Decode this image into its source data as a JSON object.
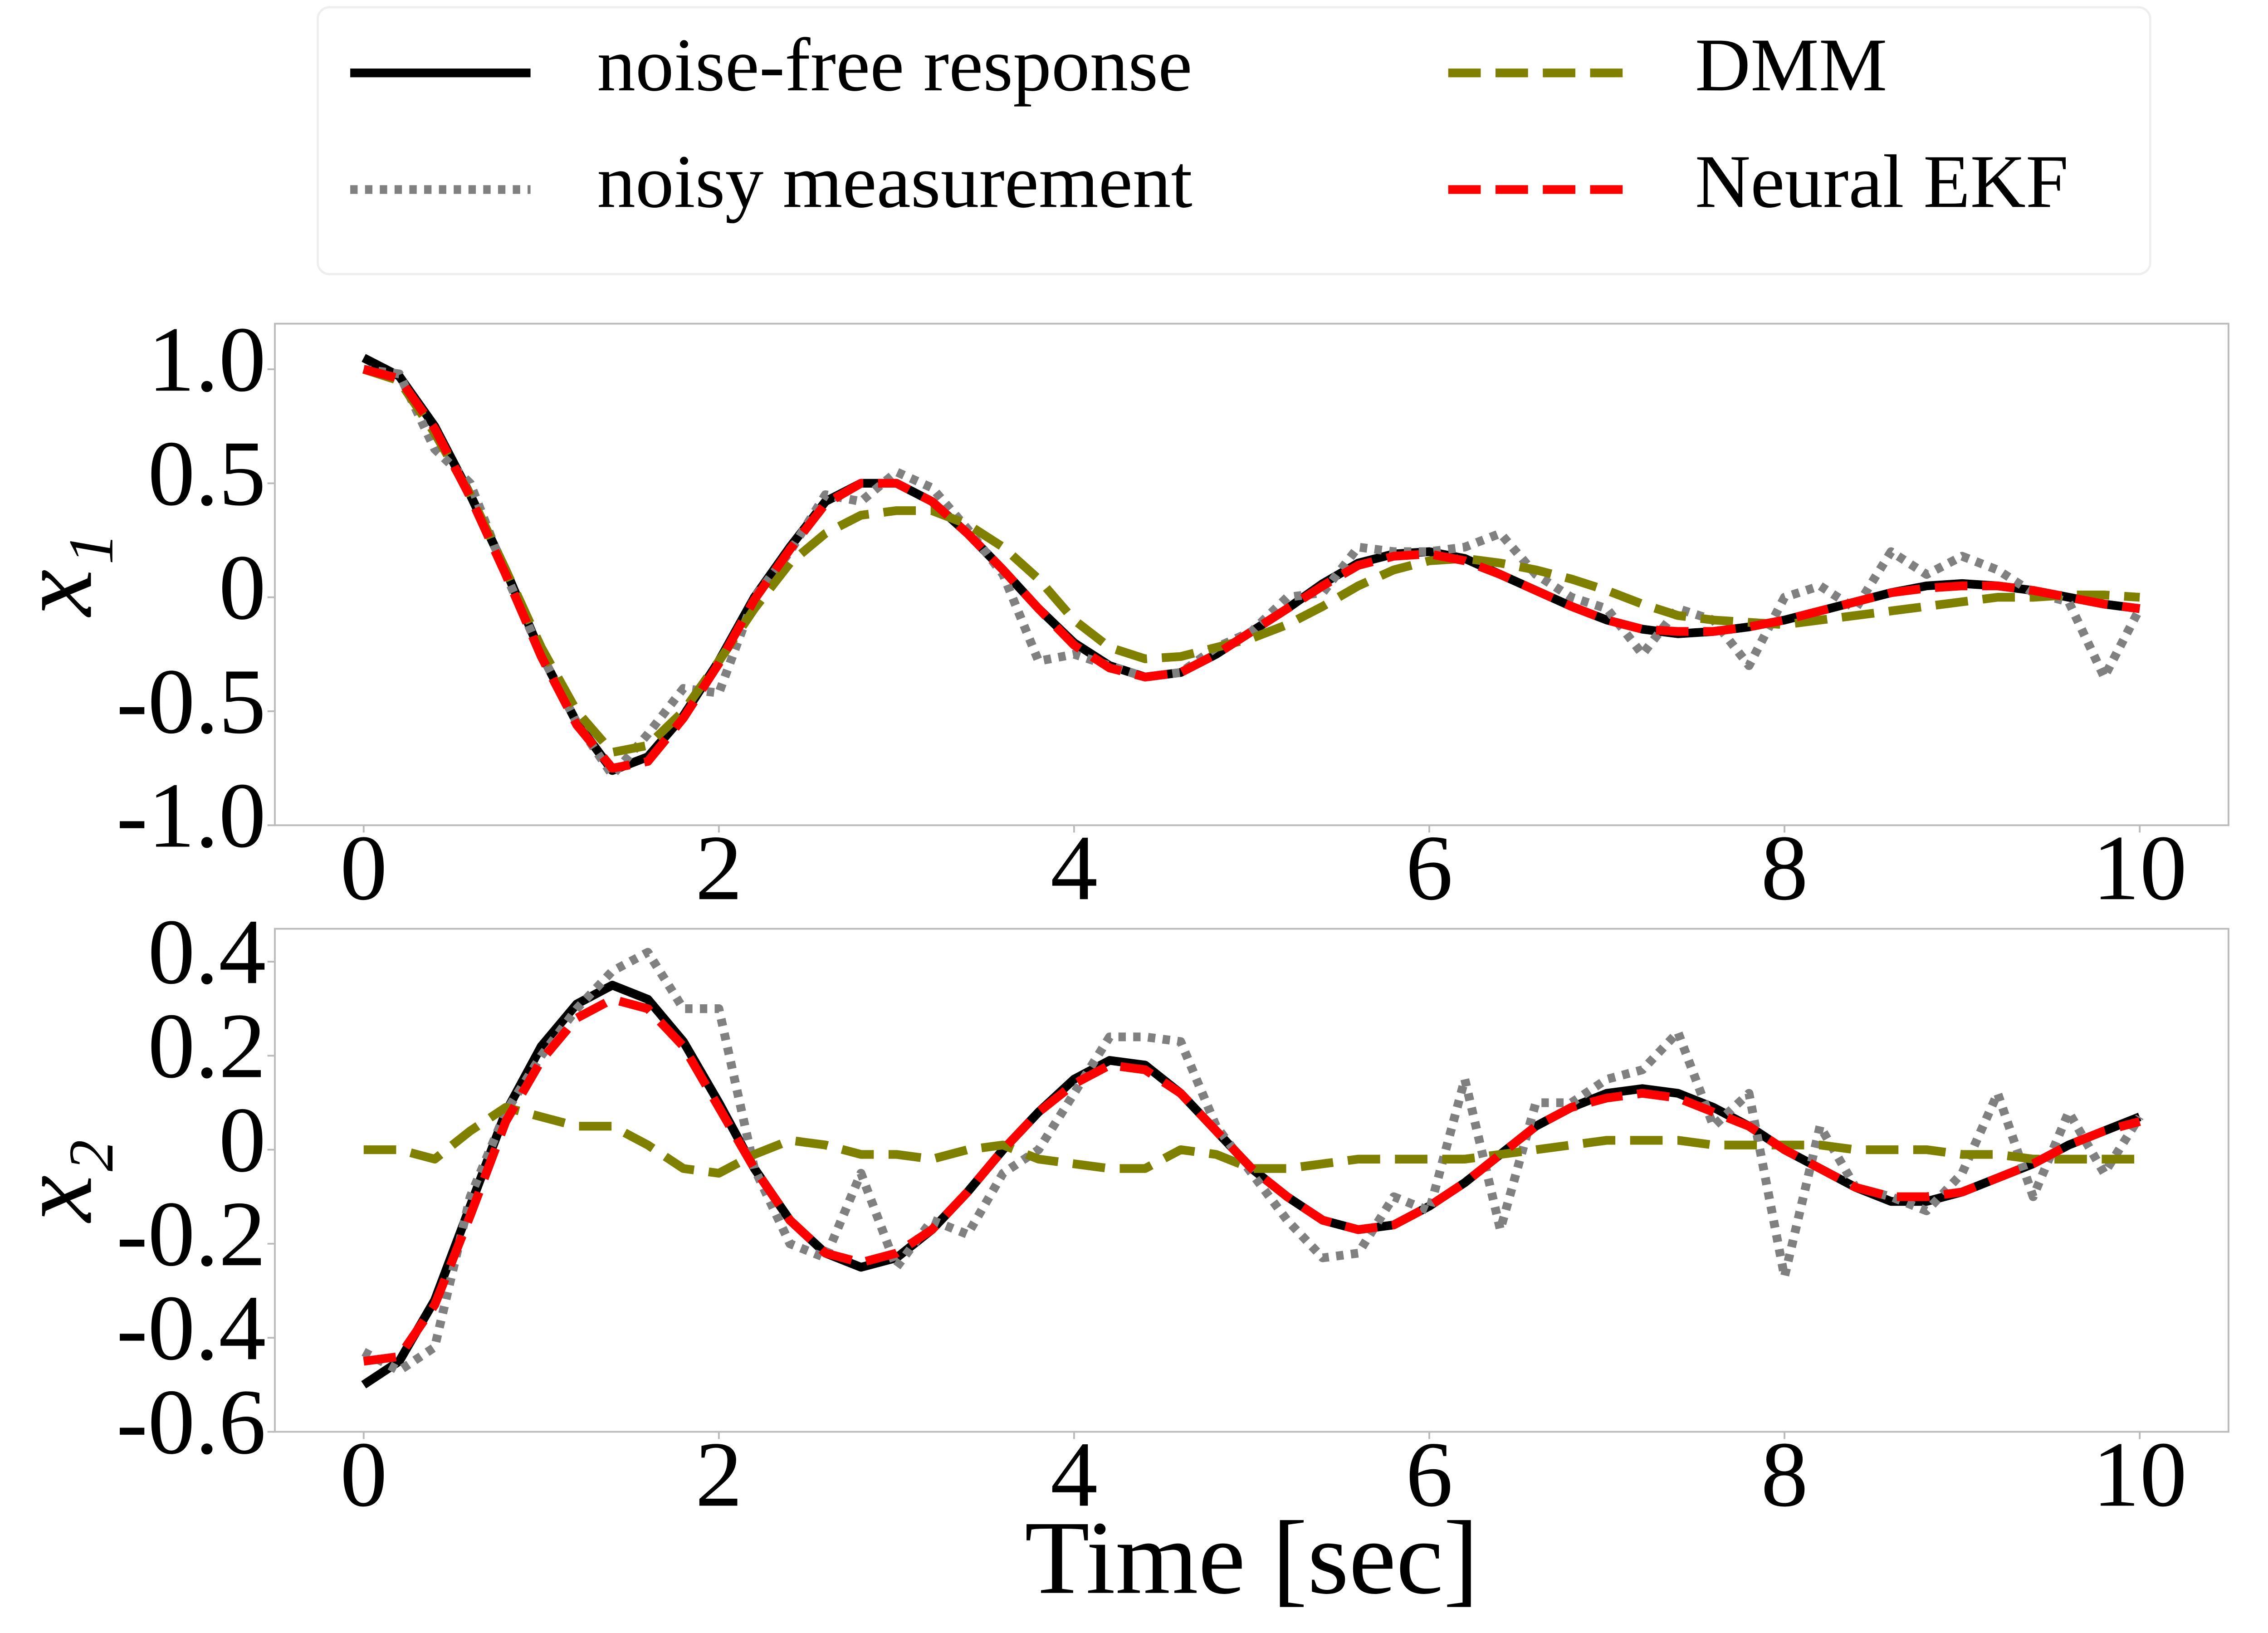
{
  "chart_data": [
    {
      "type": "line",
      "ylabel": "x₁",
      "x": [
        0,
        0.2,
        0.4,
        0.6,
        0.8,
        1,
        1.2,
        1.4,
        1.6,
        1.8,
        2,
        2.2,
        2.4,
        2.6,
        2.8,
        3,
        3.2,
        3.4,
        3.6,
        3.8,
        4,
        4.2,
        4.4,
        4.6,
        4.8,
        5,
        5.2,
        5.4,
        5.6,
        5.8,
        6,
        6.2,
        6.4,
        6.6,
        6.8,
        7,
        7.2,
        7.4,
        7.6,
        7.8,
        8,
        8.2,
        8.4,
        8.6,
        8.8,
        9,
        9.2,
        9.4,
        9.6,
        9.8,
        10
      ],
      "xlim": [
        -0.5,
        10.5
      ],
      "xticks": [
        0,
        2,
        4,
        6,
        8,
        10
      ],
      "ylim": [
        -1.0,
        1.2
      ],
      "yticks": [
        {
          "value": 1,
          "label": "1.0"
        },
        0.5,
        0,
        -0.5,
        {
          "value": -1,
          "label": "-1.0"
        }
      ],
      "legend": "upper center",
      "series": [
        {
          "name": "noise-free response",
          "color": "#000000",
          "linestyle": "solid",
          "values": [
            1.05,
            0.97,
            0.75,
            0.45,
            0.12,
            -0.25,
            -0.55,
            -0.76,
            -0.7,
            -0.52,
            -0.28,
            0.0,
            0.22,
            0.42,
            0.5,
            0.5,
            0.42,
            0.28,
            0.12,
            -0.05,
            -0.2,
            -0.3,
            -0.35,
            -0.33,
            -0.25,
            -0.15,
            -0.05,
            0.06,
            0.15,
            0.19,
            0.2,
            0.17,
            0.1,
            0.03,
            -0.04,
            -0.1,
            -0.14,
            -0.16,
            -0.15,
            -0.13,
            -0.1,
            -0.06,
            -0.02,
            0.02,
            0.05,
            0.06,
            0.05,
            0.03,
            0.0,
            -0.03,
            -0.05
          ]
        },
        {
          "name": "noisy measurement",
          "color": "#808080",
          "linestyle": "dotted",
          "values": [
            1.0,
            0.98,
            0.65,
            0.5,
            0.1,
            -0.25,
            -0.55,
            -0.78,
            -0.6,
            -0.4,
            -0.42,
            0.0,
            0.2,
            0.45,
            0.42,
            0.55,
            0.48,
            0.3,
            0.1,
            -0.28,
            -0.25,
            -0.3,
            -0.35,
            -0.33,
            -0.22,
            -0.15,
            0.0,
            0.02,
            0.22,
            0.2,
            0.2,
            0.22,
            0.28,
            0.1,
            0.0,
            -0.05,
            -0.25,
            -0.05,
            -0.1,
            -0.3,
            0.0,
            0.05,
            -0.05,
            0.2,
            0.1,
            0.18,
            0.12,
            0.02,
            -0.02,
            -0.35,
            -0.05
          ]
        },
        {
          "name": "DMM",
          "color": "#808000",
          "linestyle": "dashed",
          "values": [
            1.0,
            0.95,
            0.72,
            0.45,
            0.12,
            -0.22,
            -0.5,
            -0.68,
            -0.65,
            -0.5,
            -0.28,
            -0.05,
            0.15,
            0.28,
            0.36,
            0.38,
            0.38,
            0.32,
            0.22,
            0.08,
            -0.1,
            -0.22,
            -0.27,
            -0.26,
            -0.22,
            -0.18,
            -0.12,
            -0.04,
            0.05,
            0.12,
            0.16,
            0.17,
            0.15,
            0.12,
            0.08,
            0.03,
            -0.03,
            -0.08,
            -0.1,
            -0.11,
            -0.12,
            -0.1,
            -0.08,
            -0.06,
            -0.04,
            -0.02,
            0.0,
            0.0,
            0.01,
            0.01,
            0.0
          ]
        },
        {
          "name": "Neural EKF",
          "color": "#ff0000",
          "linestyle": "dashed",
          "values": [
            1.0,
            0.96,
            0.74,
            0.44,
            0.1,
            -0.26,
            -0.56,
            -0.75,
            -0.72,
            -0.53,
            -0.29,
            -0.01,
            0.21,
            0.41,
            0.5,
            0.5,
            0.42,
            0.28,
            0.12,
            -0.05,
            -0.21,
            -0.31,
            -0.35,
            -0.33,
            -0.25,
            -0.15,
            -0.05,
            0.05,
            0.14,
            0.18,
            0.19,
            0.16,
            0.1,
            0.03,
            -0.04,
            -0.1,
            -0.14,
            -0.15,
            -0.15,
            -0.13,
            -0.1,
            -0.06,
            -0.02,
            0.02,
            0.04,
            0.05,
            0.05,
            0.03,
            0.0,
            -0.03,
            -0.05
          ]
        }
      ]
    },
    {
      "type": "line",
      "ylabel": "x₂",
      "xlabel": "Time [sec]",
      "x": [
        0,
        0.2,
        0.4,
        0.6,
        0.8,
        1,
        1.2,
        1.4,
        1.6,
        1.8,
        2,
        2.2,
        2.4,
        2.6,
        2.8,
        3,
        3.2,
        3.4,
        3.6,
        3.8,
        4,
        4.2,
        4.4,
        4.6,
        4.8,
        5,
        5.2,
        5.4,
        5.6,
        5.8,
        6,
        6.2,
        6.4,
        6.6,
        6.8,
        7,
        7.2,
        7.4,
        7.6,
        7.8,
        8,
        8.2,
        8.4,
        8.6,
        8.8,
        9,
        9.2,
        9.4,
        9.6,
        9.8,
        10
      ],
      "xlim": [
        -0.5,
        10.5
      ],
      "xticks": [
        0,
        2,
        4,
        6,
        8,
        10
      ],
      "ylim": [
        -0.6,
        0.47
      ],
      "yticks": [
        0.4,
        0.2,
        0,
        -0.2,
        -0.4,
        -0.6
      ],
      "series": [
        {
          "name": "noise-free response",
          "color": "#000000",
          "linestyle": "solid",
          "values": [
            -0.5,
            -0.45,
            -0.32,
            -0.12,
            0.08,
            0.22,
            0.31,
            0.35,
            0.32,
            0.23,
            0.1,
            -0.04,
            -0.15,
            -0.22,
            -0.25,
            -0.23,
            -0.17,
            -0.09,
            0.0,
            0.08,
            0.15,
            0.19,
            0.18,
            0.12,
            0.04,
            -0.04,
            -0.1,
            -0.15,
            -0.17,
            -0.16,
            -0.12,
            -0.07,
            -0.01,
            0.05,
            0.09,
            0.12,
            0.13,
            0.12,
            0.09,
            0.05,
            0.0,
            -0.04,
            -0.08,
            -0.11,
            -0.11,
            -0.09,
            -0.06,
            -0.03,
            0.01,
            0.04,
            0.07
          ]
        },
        {
          "name": "noisy measurement",
          "color": "#808080",
          "linestyle": "dotted",
          "values": [
            -0.43,
            -0.47,
            -0.42,
            -0.1,
            0.08,
            0.2,
            0.3,
            0.38,
            0.42,
            0.3,
            0.3,
            -0.04,
            -0.2,
            -0.23,
            -0.05,
            -0.25,
            -0.15,
            -0.18,
            -0.05,
            0.0,
            0.12,
            0.24,
            0.24,
            0.23,
            0.05,
            -0.05,
            -0.15,
            -0.23,
            -0.22,
            -0.1,
            -0.13,
            0.15,
            -0.17,
            0.1,
            0.1,
            0.15,
            0.17,
            0.25,
            0.05,
            0.12,
            -0.27,
            0.05,
            -0.08,
            -0.1,
            -0.13,
            -0.05,
            0.12,
            -0.1,
            0.08,
            -0.05,
            0.07
          ]
        },
        {
          "name": "DMM",
          "color": "#808000",
          "linestyle": "dashed",
          "values": [
            0.0,
            0.0,
            -0.02,
            0.04,
            0.09,
            0.07,
            0.05,
            0.05,
            0.01,
            -0.04,
            -0.05,
            -0.01,
            0.02,
            0.01,
            -0.01,
            -0.01,
            -0.02,
            0.0,
            0.01,
            -0.02,
            -0.03,
            -0.04,
            -0.04,
            0.0,
            -0.01,
            -0.04,
            -0.04,
            -0.03,
            -0.02,
            -0.02,
            -0.02,
            -0.02,
            -0.01,
            0.0,
            0.01,
            0.02,
            0.02,
            0.02,
            0.01,
            0.01,
            0.01,
            0.01,
            0.0,
            0.0,
            0.0,
            -0.01,
            -0.01,
            -0.02,
            -0.02,
            -0.02,
            -0.02
          ]
        },
        {
          "name": "Neural EKF",
          "color": "#ff0000",
          "linestyle": "dashed",
          "values": [
            -0.45,
            -0.44,
            -0.33,
            -0.14,
            0.06,
            0.19,
            0.28,
            0.32,
            0.3,
            0.22,
            0.09,
            -0.04,
            -0.15,
            -0.22,
            -0.24,
            -0.22,
            -0.17,
            -0.09,
            0.0,
            0.08,
            0.14,
            0.18,
            0.17,
            0.12,
            0.04,
            -0.04,
            -0.1,
            -0.15,
            -0.17,
            -0.16,
            -0.12,
            -0.07,
            -0.01,
            0.05,
            0.09,
            0.11,
            0.12,
            0.11,
            0.08,
            0.05,
            0.0,
            -0.04,
            -0.08,
            -0.1,
            -0.1,
            -0.09,
            -0.06,
            -0.03,
            0.01,
            0.04,
            0.06
          ]
        }
      ]
    }
  ]
}
